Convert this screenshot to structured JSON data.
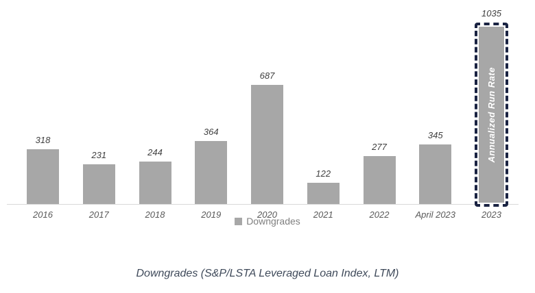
{
  "chart_data": {
    "type": "bar",
    "categories": [
      "2016",
      "2017",
      "2018",
      "2019",
      "2020",
      "2021",
      "2022",
      "April 2023",
      "2023"
    ],
    "values": [
      318,
      231,
      244,
      364,
      687,
      122,
      277,
      345,
      1035
    ],
    "title": "",
    "xlabel": "",
    "ylabel": "",
    "ylim": [
      0,
      1100
    ],
    "grid": false,
    "legend_position": "bottom",
    "legend_entries": [
      "Downgrades"
    ],
    "bar_color": "#a7a7a7",
    "highlight": {
      "index": 8,
      "label": "Annualized Run Rate",
      "style": "dashed-outline",
      "border_color": "#1a2342"
    },
    "caption": "Downgrades (S&P/LSTA Leveraged Loan Index, LTM)"
  },
  "legend": {
    "downgrades_label": "Downgrades",
    "swatch_color": "#a7a7a7"
  },
  "annotations": {
    "run_rate_label": "Annualized Run Rate"
  },
  "caption": {
    "text": "Downgrades (S&P/LSTA Leveraged Loan Index, LTM)"
  }
}
